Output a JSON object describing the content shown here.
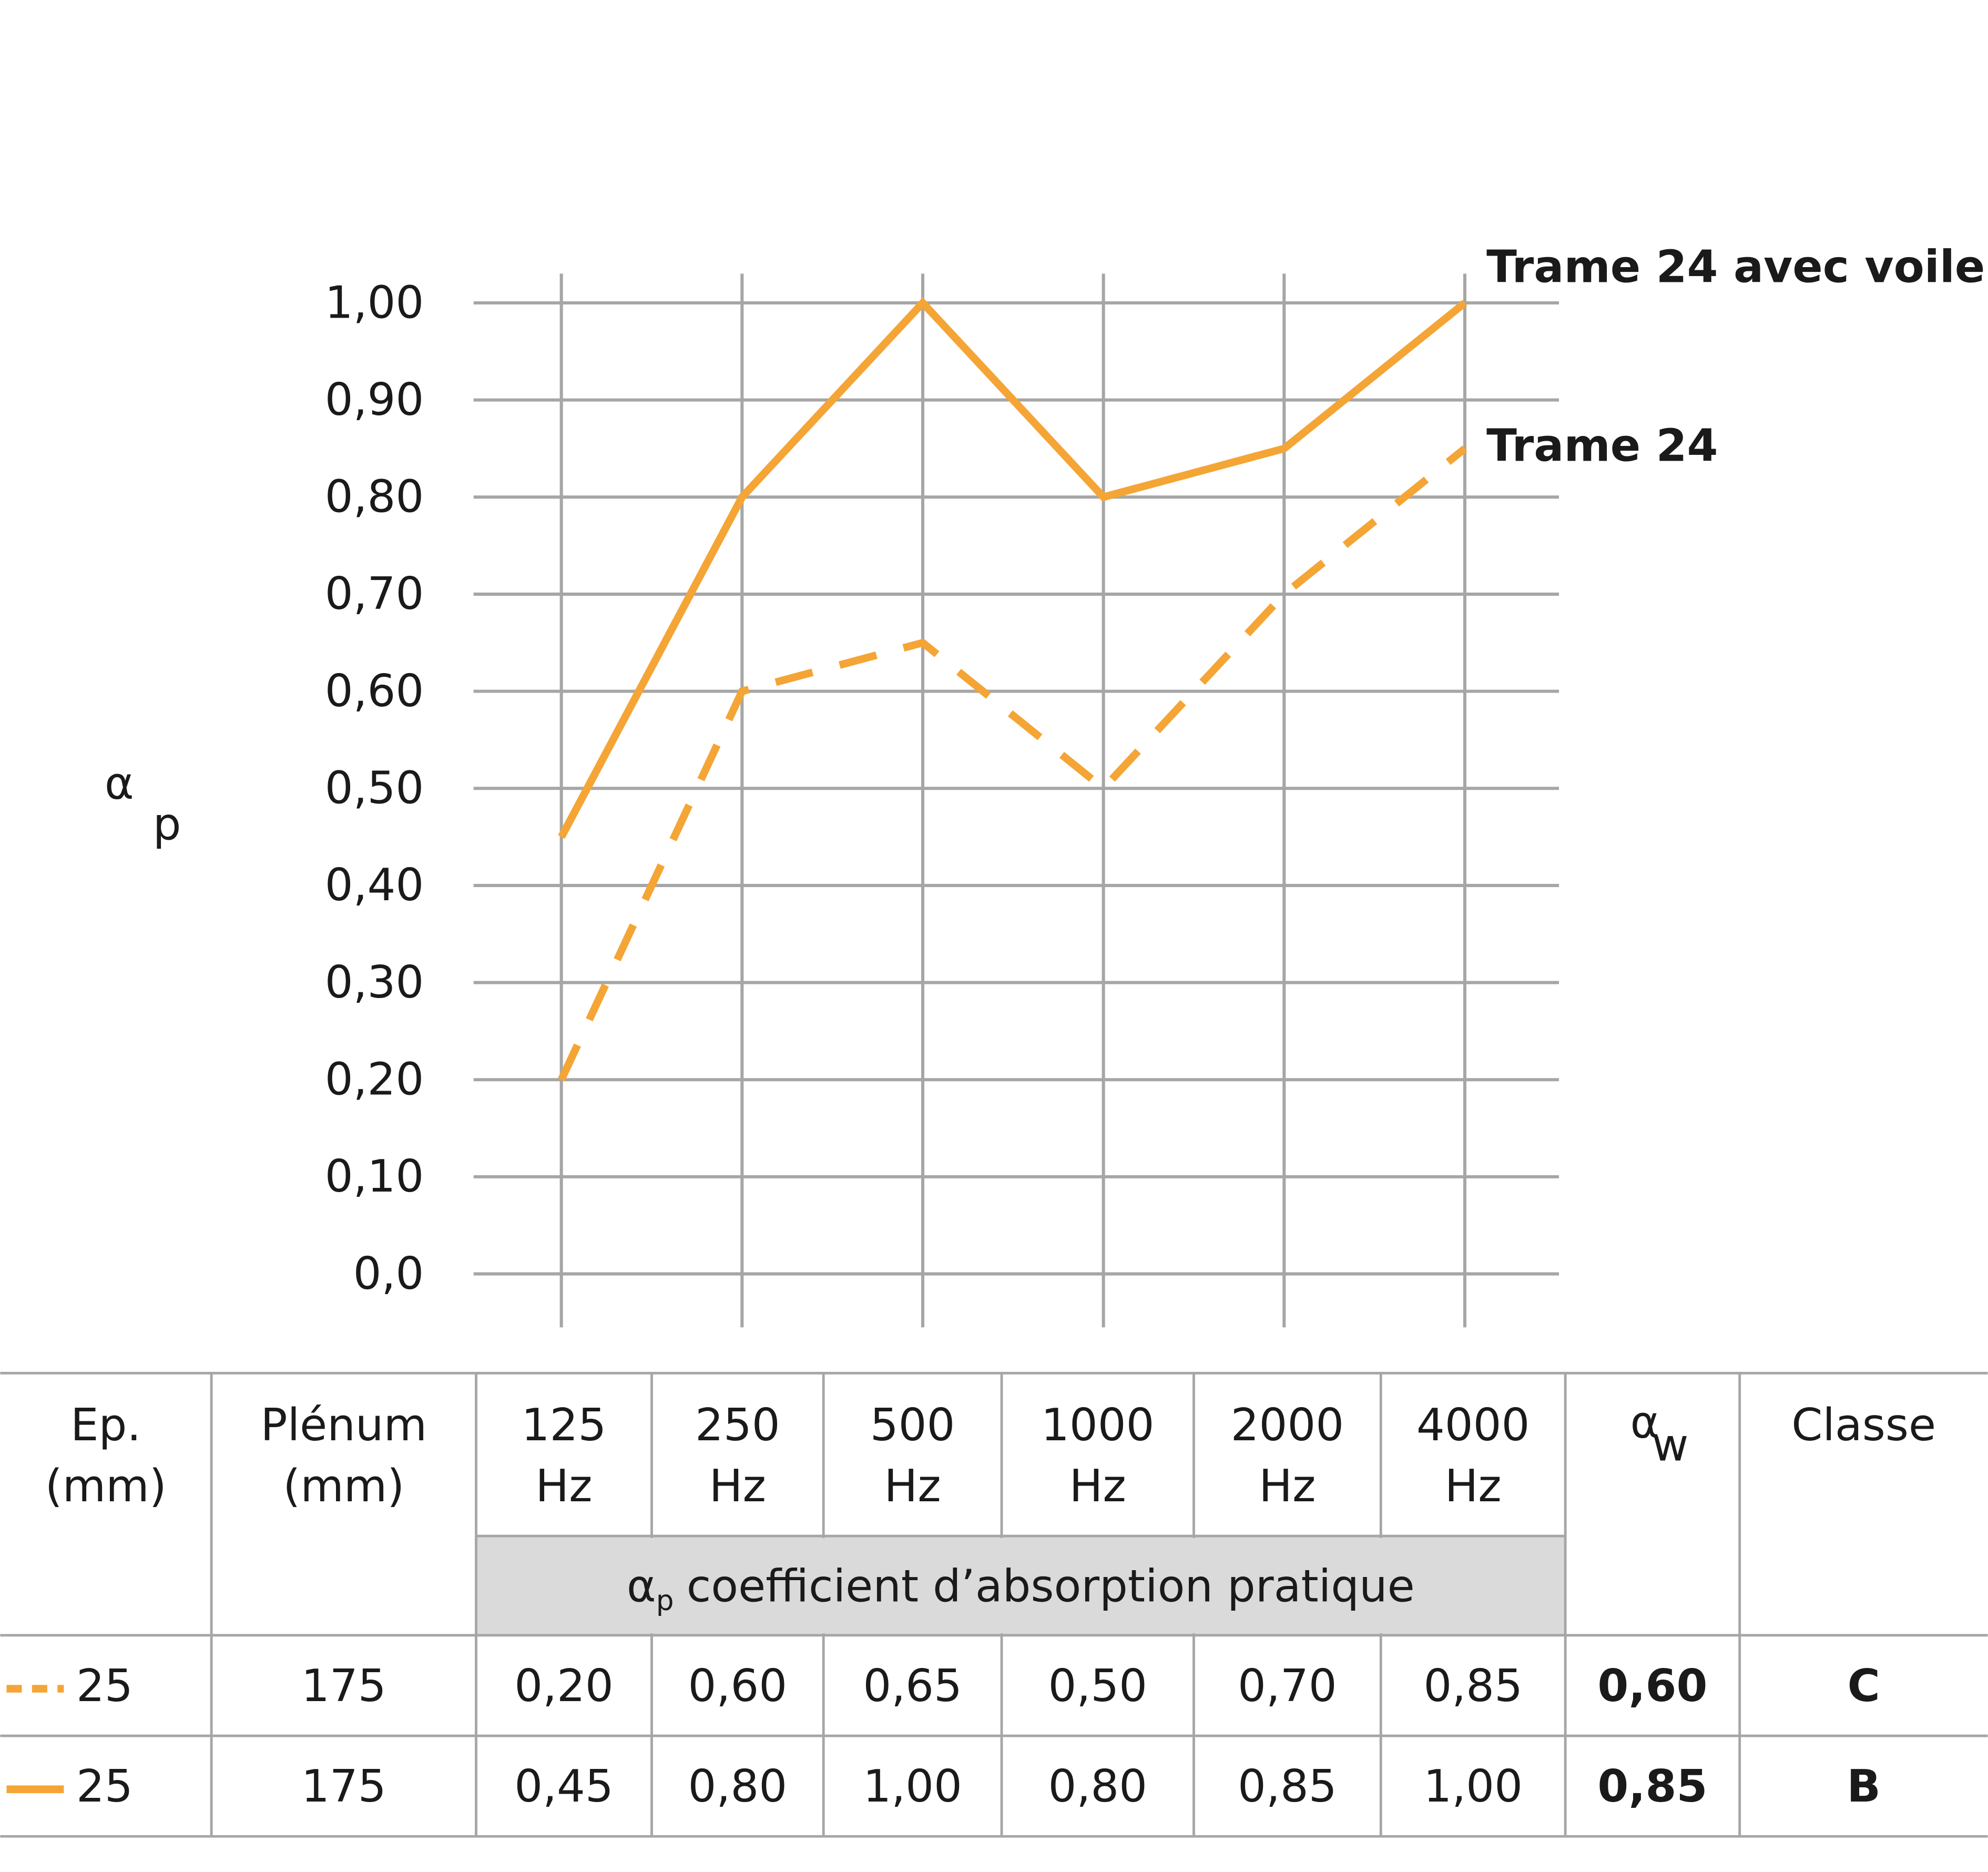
{
  "chart_data": {
    "type": "line",
    "y_label": {
      "symbol": "α",
      "sub": "p"
    },
    "categories": [
      "125",
      "250",
      "500",
      "1000",
      "2000",
      "4000"
    ],
    "series": [
      {
        "name": "Trame 24 avec voile",
        "color": "#f4a535",
        "dash": false,
        "values": [
          0.45,
          0.8,
          1.0,
          0.8,
          0.85,
          1.0
        ]
      },
      {
        "name": "Trame 24",
        "color": "#f4a535",
        "dash": true,
        "values": [
          0.2,
          0.6,
          0.65,
          0.5,
          0.7,
          0.85
        ]
      }
    ],
    "ylim": [
      0,
      1
    ],
    "yticks": [
      {
        "value": 0,
        "label": "0,0"
      },
      {
        "value": 0.1,
        "label": "0,10"
      },
      {
        "value": 0.2,
        "label": "0,20"
      },
      {
        "value": 0.3,
        "label": "0,30"
      },
      {
        "value": 0.4,
        "label": "0,40"
      },
      {
        "value": 0.5,
        "label": "0,50"
      },
      {
        "value": 0.6,
        "label": "0,60"
      },
      {
        "value": 0.7,
        "label": "0,70"
      },
      {
        "value": 0.8,
        "label": "0,80"
      },
      {
        "value": 0.9,
        "label": "0,90"
      },
      {
        "value": 1,
        "label": "1,00"
      }
    ],
    "grid": true
  },
  "table": {
    "header": [
      [
        "Ep.",
        "(mm)"
      ],
      [
        "Plénum",
        "(mm)"
      ],
      [
        "125",
        "Hz"
      ],
      [
        "250",
        "Hz"
      ],
      [
        "500",
        "Hz"
      ],
      [
        "1000",
        "Hz"
      ],
      [
        "2000",
        "Hz"
      ],
      [
        "4000",
        "Hz"
      ],
      {
        "symbol": "α",
        "sub": "w"
      },
      [
        "Classe"
      ]
    ],
    "subheader": {
      "symbol": "α",
      "sub": "p",
      "text": "coefficient d’absorption pratique"
    },
    "rows": [
      {
        "dash": true,
        "cells": [
          "25",
          "175",
          "0,20",
          "0,60",
          "0,65",
          "0,50",
          "0,70",
          "0,85",
          "0,60",
          "C"
        ]
      },
      {
        "dash": false,
        "cells": [
          "25",
          "175",
          "0,45",
          "0,80",
          "1,00",
          "0,80",
          "0,85",
          "1,00",
          "0,85",
          "B"
        ]
      }
    ]
  }
}
